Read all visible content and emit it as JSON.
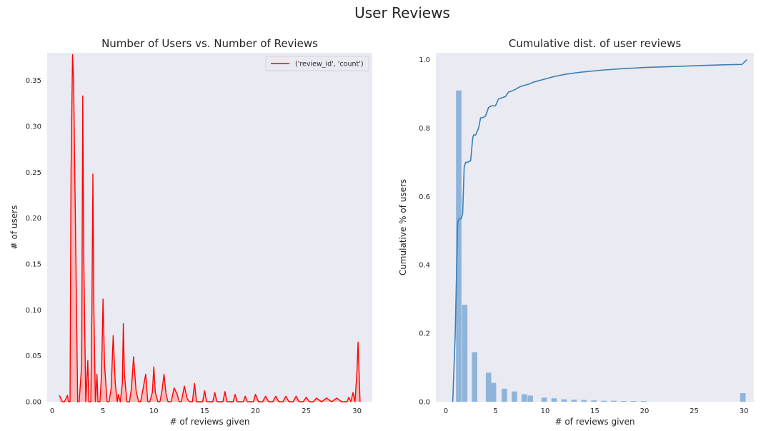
{
  "figure": {
    "suptitle": "User Reviews"
  },
  "chart_data": [
    {
      "type": "area",
      "title": "Number of Users vs. Number of Reviews",
      "xlabel": "# of reviews given",
      "ylabel": "# of users",
      "xlim": [
        -0.5,
        31.5
      ],
      "ylim": [
        0,
        0.38
      ],
      "xticks": [
        0,
        5,
        10,
        15,
        20,
        25,
        30
      ],
      "yticks": [
        0.0,
        0.05,
        0.1,
        0.15,
        0.2,
        0.25,
        0.3,
        0.35
      ],
      "ytick_labels": [
        "0.00",
        "0.05",
        "0.10",
        "0.15",
        "0.20",
        "0.25",
        "0.30",
        "0.35"
      ],
      "grid": false,
      "legend": {
        "loc": "top-right",
        "entries": [
          "('review_id', 'count')"
        ]
      },
      "color": "#ff0000",
      "fill_color": "#ffb0b0",
      "series": [
        {
          "name": "('review_id', 'count')",
          "x": [
            0.7,
            1.0,
            1.2,
            1.5,
            1.6,
            1.75,
            1.85,
            2.0,
            2.1,
            2.3,
            2.5,
            2.65,
            2.9,
            3.0,
            3.1,
            3.3,
            3.5,
            3.6,
            3.8,
            3.9,
            4.0,
            4.1,
            4.25,
            4.4,
            4.5,
            4.7,
            4.85,
            5.0,
            5.15,
            5.4,
            5.6,
            5.8,
            6.0,
            6.2,
            6.4,
            6.5,
            6.7,
            6.9,
            7.0,
            7.1,
            7.35,
            7.6,
            7.8,
            8.0,
            8.25,
            8.5,
            8.7,
            8.9,
            9.2,
            9.4,
            9.6,
            9.85,
            10.0,
            10.15,
            10.4,
            10.6,
            10.8,
            11.0,
            11.2,
            11.4,
            11.7,
            12.0,
            12.3,
            12.5,
            12.7,
            13.0,
            13.3,
            13.5,
            13.8,
            14.0,
            14.2,
            14.5,
            14.8,
            15.0,
            15.2,
            15.5,
            15.8,
            16.0,
            16.2,
            16.5,
            16.8,
            17.0,
            17.2,
            17.5,
            17.8,
            18.0,
            18.2,
            18.5,
            18.8,
            19.0,
            19.2,
            19.5,
            19.8,
            20.0,
            20.3,
            20.7,
            21.0,
            21.3,
            21.7,
            22.0,
            22.3,
            22.7,
            23.0,
            23.3,
            23.7,
            24.0,
            24.3,
            24.7,
            25.0,
            25.3,
            25.7,
            26.0,
            26.5,
            27.0,
            27.5,
            28.0,
            28.5,
            28.8,
            29.0,
            29.2,
            29.4,
            29.6,
            29.8,
            30.0,
            30.1,
            30.3
          ],
          "y": [
            0.007,
            0.0,
            0.0,
            0.007,
            0.0,
            0.0,
            0.25,
            0.378,
            0.35,
            0.18,
            0.0,
            0.0,
            0.04,
            0.333,
            0.16,
            0.0,
            0.045,
            0.0,
            0.0,
            0.1,
            0.248,
            0.1,
            0.0,
            0.03,
            0.0,
            0.0,
            0.03,
            0.112,
            0.04,
            0.0,
            0.0,
            0.015,
            0.072,
            0.02,
            0.0,
            0.008,
            0.0,
            0.02,
            0.085,
            0.03,
            0.0,
            0.0,
            0.015,
            0.049,
            0.012,
            0.0,
            0.0,
            0.012,
            0.03,
            0.0,
            0.0,
            0.01,
            0.038,
            0.01,
            0.0,
            0.0,
            0.012,
            0.03,
            0.008,
            0.0,
            0.0,
            0.015,
            0.008,
            0.0,
            0.0,
            0.017,
            0.003,
            0.0,
            0.0,
            0.02,
            0.0,
            0.0,
            0.0,
            0.012,
            0.0,
            0.0,
            0.0,
            0.01,
            0.0,
            0.0,
            0.0,
            0.011,
            0.0,
            0.0,
            0.0,
            0.008,
            0.0,
            0.0,
            0.0,
            0.006,
            0.0,
            0.0,
            0.0,
            0.008,
            0.0,
            0.0,
            0.006,
            0.0,
            0.0,
            0.006,
            0.0,
            0.0,
            0.006,
            0.0,
            0.0,
            0.006,
            0.0,
            0.0,
            0.005,
            0.0,
            0.0,
            0.004,
            0.0,
            0.004,
            0.0,
            0.004,
            0.0,
            0.0,
            0.0,
            0.005,
            0.0,
            0.01,
            0.0,
            0.035,
            0.065,
            0.0
          ]
        }
      ]
    },
    {
      "type": "bar",
      "title": "Cumulative dist. of user reviews",
      "xlabel": "# of reviews given",
      "ylabel": "Cumulative % of users",
      "xlim": [
        -1,
        31
      ],
      "ylim": [
        0,
        1.02
      ],
      "xticks": [
        0,
        5,
        10,
        15,
        20,
        25,
        30
      ],
      "yticks": [
        0.0,
        0.2,
        0.4,
        0.6,
        0.8,
        1.0
      ],
      "ytick_labels": [
        "0.0",
        "0.2",
        "0.4",
        "0.6",
        "0.8",
        "1.0"
      ],
      "grid": false,
      "bar_color": "#8fb4d9",
      "line_color": "#3a7fb5",
      "bars": {
        "x": [
          1.3,
          1.9,
          2.9,
          4.3,
          4.8,
          5.9,
          6.9,
          7.9,
          8.5,
          9.9,
          10.9,
          11.9,
          12.9,
          13.9,
          14.9,
          15.9,
          16.9,
          17.9,
          18.9,
          19.9,
          29.9
        ],
        "values": [
          0.91,
          0.283,
          0.145,
          0.085,
          0.055,
          0.038,
          0.03,
          0.022,
          0.018,
          0.012,
          0.01,
          0.007,
          0.006,
          0.005,
          0.004,
          0.003,
          0.003,
          0.002,
          0.002,
          0.002,
          0.025
        ]
      },
      "series": [
        {
          "x": [
            0.7,
            0.95,
            1.1,
            1.2,
            1.35,
            1.55,
            1.7,
            1.85,
            2.0,
            2.2,
            2.5,
            2.7,
            2.8,
            3.0,
            3.3,
            3.5,
            3.7,
            4.0,
            4.3,
            4.6,
            5.0,
            5.3,
            5.6,
            6.0,
            6.3,
            6.6,
            7.0,
            7.4,
            7.8,
            8.3,
            8.8,
            9.3,
            9.8,
            10.3,
            10.8,
            11.3,
            12.0,
            12.7,
            13.5,
            14.5,
            15.5,
            16.5,
            18.0,
            20.0,
            22.0,
            24.0,
            26.0,
            28.0,
            29.8,
            30.3
          ],
          "y": [
            0.0,
            0.2,
            0.4,
            0.525,
            0.535,
            0.535,
            0.55,
            0.685,
            0.7,
            0.7,
            0.705,
            0.77,
            0.78,
            0.78,
            0.8,
            0.83,
            0.83,
            0.835,
            0.86,
            0.865,
            0.865,
            0.885,
            0.888,
            0.892,
            0.905,
            0.908,
            0.913,
            0.92,
            0.924,
            0.928,
            0.934,
            0.938,
            0.942,
            0.946,
            0.95,
            0.953,
            0.957,
            0.96,
            0.963,
            0.966,
            0.969,
            0.971,
            0.974,
            0.977,
            0.979,
            0.981,
            0.983,
            0.985,
            0.986,
            1.0
          ]
        }
      ]
    }
  ]
}
